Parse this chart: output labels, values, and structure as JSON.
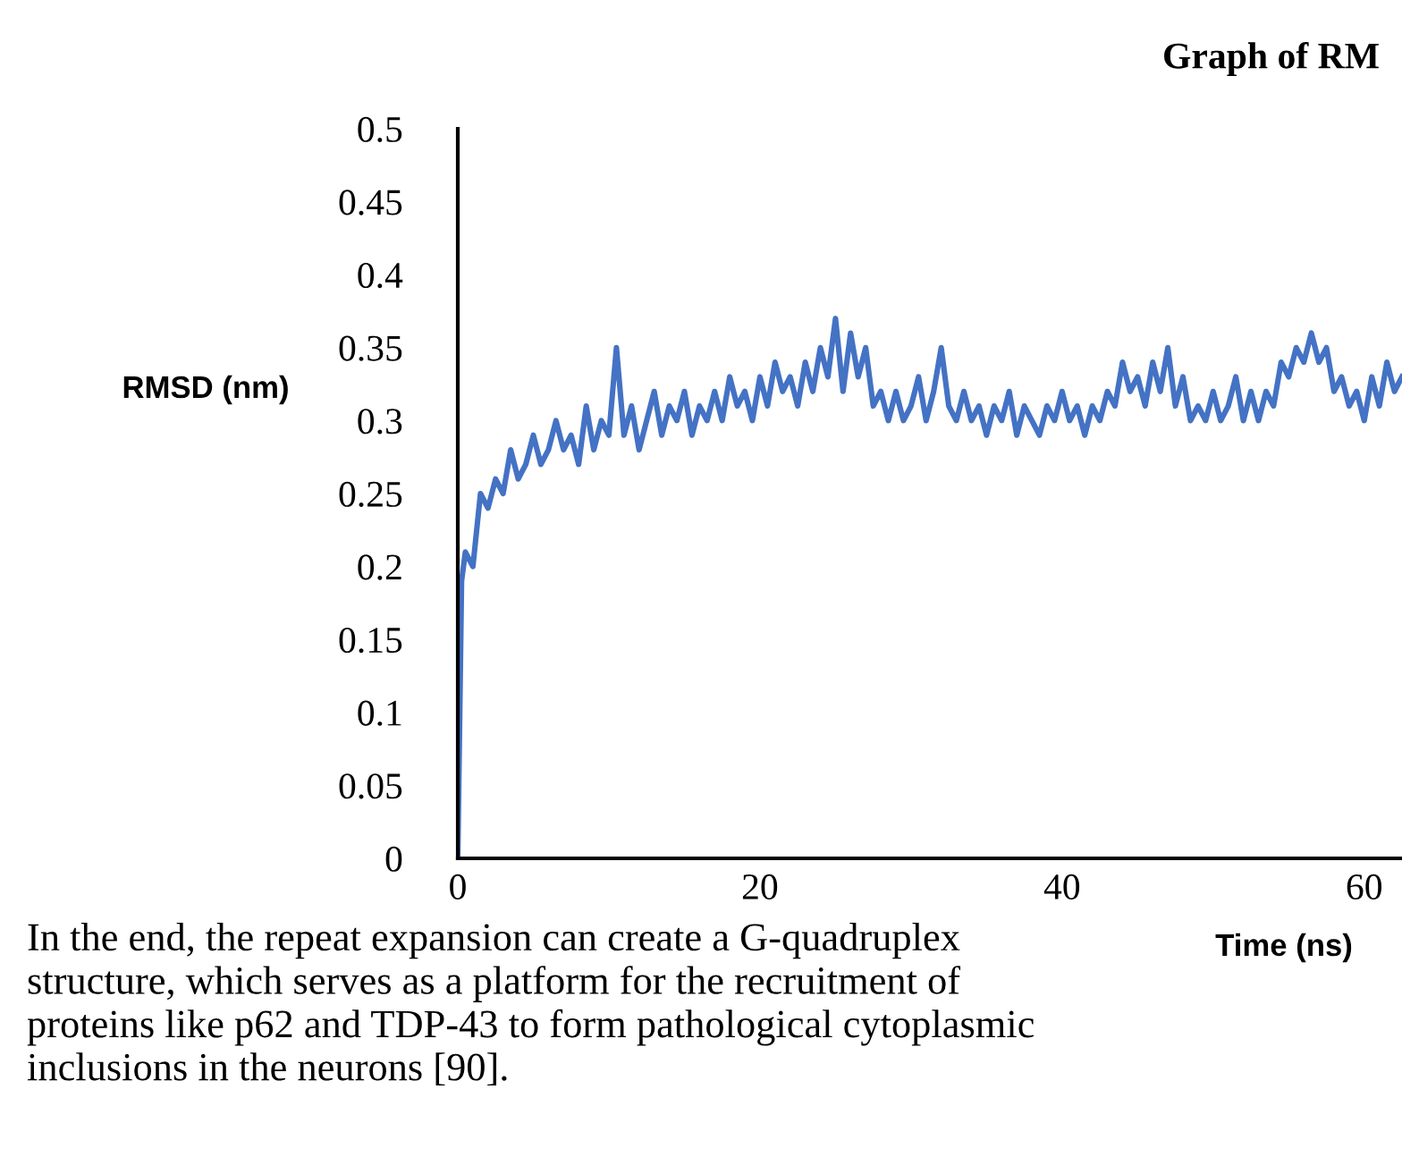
{
  "chart_data": {
    "type": "line",
    "title": "Graph of RM",
    "xlabel": "Time (ns)",
    "ylabel": "RMSD (nm)",
    "annotations": [
      "In the end, the repeat expansion can create a G-quadruplex\nstructure, which serves as a platform for the recruitment of\nproteins like p62 and TDP-43 to form pathological cytoplasmic\ninclusions in the neurons [90]."
    ],
    "series": [
      {
        "color": "#4472c4",
        "x": [
          0,
          0.25,
          0.5,
          1,
          1.5,
          2,
          2.5,
          3,
          3.5,
          4,
          4.5,
          5,
          5.5,
          6,
          6.5,
          7,
          7.5,
          8,
          8.5,
          9,
          9.5,
          10,
          10.5,
          11,
          11.5,
          12,
          12.5,
          13,
          13.5,
          14,
          14.5,
          15,
          15.5,
          16,
          16.5,
          17,
          17.5,
          18,
          18.5,
          19,
          19.5,
          20,
          20.5,
          21,
          21.5,
          22,
          22.5,
          23,
          23.5,
          24,
          24.5,
          25,
          25.5,
          26,
          26.5,
          27,
          27.5,
          28,
          28.5,
          29,
          29.5,
          30,
          30.5,
          31,
          31.5,
          32,
          32.5,
          33,
          33.5,
          34,
          34.5,
          35,
          35.5,
          36,
          36.5,
          37,
          37.5,
          38,
          38.5,
          39,
          39.5,
          40,
          40.5,
          41,
          41.5,
          42,
          42.5,
          43,
          43.5,
          44,
          44.5,
          45,
          45.5,
          46,
          46.5,
          47,
          47.5,
          48,
          48.5,
          49,
          49.5,
          50,
          50.5,
          51,
          51.5,
          52,
          52.5,
          53,
          53.5,
          54,
          54.5,
          55,
          55.5,
          56,
          56.5,
          57,
          57.5,
          58,
          58.5,
          59,
          59.5,
          60,
          60.5,
          61,
          61.5,
          62,
          62.5
        ],
        "values": [
          0,
          0.19,
          0.21,
          0.2,
          0.25,
          0.24,
          0.26,
          0.25,
          0.28,
          0.26,
          0.27,
          0.29,
          0.27,
          0.28,
          0.3,
          0.28,
          0.29,
          0.27,
          0.31,
          0.28,
          0.3,
          0.29,
          0.35,
          0.29,
          0.31,
          0.28,
          0.3,
          0.32,
          0.29,
          0.31,
          0.3,
          0.32,
          0.29,
          0.31,
          0.3,
          0.32,
          0.3,
          0.33,
          0.31,
          0.32,
          0.3,
          0.33,
          0.31,
          0.34,
          0.32,
          0.33,
          0.31,
          0.34,
          0.32,
          0.35,
          0.33,
          0.37,
          0.32,
          0.36,
          0.33,
          0.35,
          0.31,
          0.32,
          0.3,
          0.32,
          0.3,
          0.31,
          0.33,
          0.3,
          0.32,
          0.35,
          0.31,
          0.3,
          0.32,
          0.3,
          0.31,
          0.29,
          0.31,
          0.3,
          0.32,
          0.29,
          0.31,
          0.3,
          0.29,
          0.31,
          0.3,
          0.32,
          0.3,
          0.31,
          0.29,
          0.31,
          0.3,
          0.32,
          0.31,
          0.34,
          0.32,
          0.33,
          0.31,
          0.34,
          0.32,
          0.35,
          0.31,
          0.33,
          0.3,
          0.31,
          0.3,
          0.32,
          0.3,
          0.31,
          0.33,
          0.3,
          0.32,
          0.3,
          0.32,
          0.31,
          0.34,
          0.33,
          0.35,
          0.34,
          0.36,
          0.34,
          0.35,
          0.32,
          0.33,
          0.31,
          0.32,
          0.3,
          0.33,
          0.31,
          0.34,
          0.32,
          0.33
        ]
      }
    ],
    "xlim": [
      0,
      62.5
    ],
    "xticks": [
      0,
      20,
      40,
      60
    ],
    "ylim": [
      0,
      0.5
    ],
    "yticks": [
      0,
      0.05,
      0.1,
      0.15,
      0.2,
      0.25,
      0.3,
      0.35,
      0.4,
      0.45,
      0.5
    ],
    "grid": false,
    "legend": false,
    "marker": "none",
    "line_style": "solid"
  }
}
